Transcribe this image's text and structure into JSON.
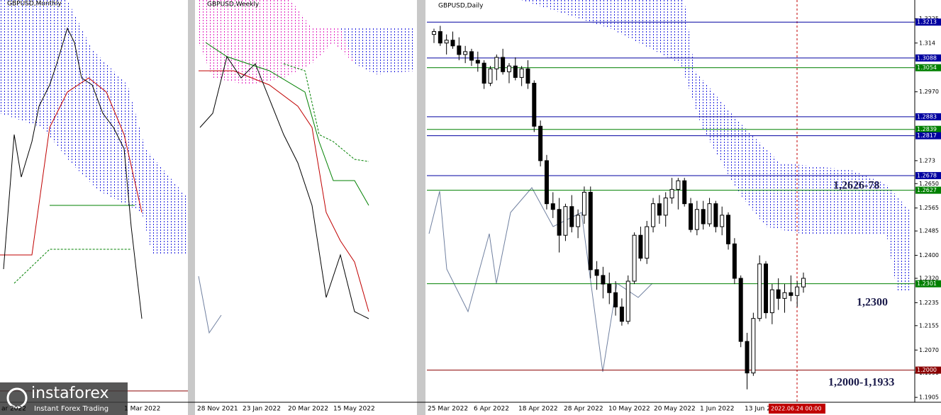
{
  "chart_data": {
    "type": "candlestick",
    "panels": [
      {
        "title": "GBPUSD,Monthly",
        "x_labels": [
          "ar 2022",
          "1 Mar 2022"
        ]
      },
      {
        "title": "GBPUSD,Weekly",
        "x_labels": [
          "28 Nov 2021",
          "23 Jan 2022",
          "20 Mar 2022",
          "15 May 2022"
        ]
      },
      {
        "title": "GBPUSD,Daily",
        "x_labels": [
          "25 Mar 2022",
          "6 Apr 2022",
          "18 Apr 2022",
          "28 Apr 2022",
          "10 May 2022",
          "20 May 2022",
          "1 Jun 2022",
          "13 Jun 2"
        ],
        "cursor_label": "2022.06.24 00:00"
      }
    ],
    "ylim": [
      1.1888,
      1.329
    ],
    "yticks": [
      1.3225,
      1.314,
      {
        "value": 1.297,
        "label": "1.2970"
      },
      1.273,
      {
        "value": 1.265,
        "label": "1.2650"
      },
      1.2565,
      1.2485,
      {
        "value": 1.24,
        "label": "1.2400"
      },
      {
        "value": 1.232,
        "label": "1.2320"
      },
      1.2235,
      1.2155,
      {
        "value": 1.207,
        "label": "1.2070"
      },
      {
        "value": 1.199,
        "label": "1.1990"
      },
      1.1905
    ],
    "levels": [
      {
        "value": 1.3213,
        "color": "#0000a0"
      },
      {
        "value": 1.3088,
        "color": "#0000a0"
      },
      {
        "value": 1.3054,
        "color": "#008000"
      },
      {
        "value": 1.2883,
        "color": "#0000a0"
      },
      {
        "value": 1.2839,
        "color": "#008000"
      },
      {
        "value": 1.2817,
        "color": "#0000a0"
      },
      {
        "value": 1.2678,
        "color": "#0000a0"
      },
      {
        "value": 1.2627,
        "color": "#008000"
      },
      {
        "value": 1.2301,
        "color": "#008000"
      },
      {
        "value": 1.2,
        "label": "1.2000",
        "color": "#8b0000"
      }
    ],
    "annotations": [
      "1,2626-78",
      "1,2300",
      "1,2000-1,1933"
    ],
    "watermark": [
      "instaforex",
      "Instant Forex Trading"
    ],
    "candles": [
      [
        1.317,
        1.319,
        1.314,
        1.318
      ],
      [
        1.318,
        1.32,
        1.313,
        1.314
      ],
      [
        1.314,
        1.317,
        1.31,
        1.315
      ],
      [
        1.315,
        1.318,
        1.312,
        1.313
      ],
      [
        1.313,
        1.316,
        1.308,
        1.31
      ],
      [
        1.31,
        1.313,
        1.307,
        1.311
      ],
      [
        1.311,
        1.312,
        1.306,
        1.308
      ],
      [
        1.308,
        1.311,
        1.304,
        1.307
      ],
      [
        1.307,
        1.308,
        1.298,
        1.3
      ],
      [
        1.3,
        1.306,
        1.299,
        1.305
      ],
      [
        1.305,
        1.31,
        1.301,
        1.309
      ],
      [
        1.309,
        1.312,
        1.303,
        1.304
      ],
      [
        1.304,
        1.307,
        1.3,
        1.306
      ],
      [
        1.306,
        1.309,
        1.301,
        1.302
      ],
      [
        1.302,
        1.306,
        1.299,
        1.305
      ],
      [
        1.305,
        1.308,
        1.298,
        1.3
      ],
      [
        1.3,
        1.301,
        1.283,
        1.285
      ],
      [
        1.285,
        1.287,
        1.271,
        1.273
      ],
      [
        1.273,
        1.275,
        1.256,
        1.258
      ],
      [
        1.258,
        1.262,
        1.253,
        1.256
      ],
      [
        1.256,
        1.26,
        1.241,
        1.247
      ],
      [
        1.247,
        1.258,
        1.245,
        1.257
      ],
      [
        1.257,
        1.261,
        1.248,
        1.25
      ],
      [
        1.25,
        1.256,
        1.246,
        1.254
      ],
      [
        1.254,
        1.264,
        1.251,
        1.262
      ],
      [
        1.262,
        1.264,
        1.232,
        1.235
      ],
      [
        1.235,
        1.238,
        1.228,
        1.233
      ],
      [
        1.233,
        1.236,
        1.225,
        1.23
      ],
      [
        1.23,
        1.234,
        1.223,
        1.227
      ],
      [
        1.227,
        1.231,
        1.219,
        1.222
      ],
      [
        1.222,
        1.225,
        1.2155,
        1.217
      ],
      [
        1.217,
        1.233,
        1.216,
        1.231
      ],
      [
        1.231,
        1.248,
        1.23,
        1.247
      ],
      [
        1.247,
        1.25,
        1.238,
        1.239
      ],
      [
        1.239,
        1.252,
        1.237,
        1.25
      ],
      [
        1.25,
        1.26,
        1.248,
        1.258
      ],
      [
        1.258,
        1.261,
        1.251,
        1.254
      ],
      [
        1.254,
        1.262,
        1.25,
        1.26
      ],
      [
        1.26,
        1.267,
        1.258,
        1.263
      ],
      [
        1.263,
        1.267,
        1.256,
        1.266
      ],
      [
        1.266,
        1.267,
        1.257,
        1.258
      ],
      [
        1.258,
        1.26,
        1.248,
        1.249
      ],
      [
        1.249,
        1.259,
        1.247,
        1.256
      ],
      [
        1.256,
        1.259,
        1.249,
        1.251
      ],
      [
        1.251,
        1.26,
        1.25,
        1.258
      ],
      [
        1.258,
        1.259,
        1.248,
        1.25
      ],
      [
        1.25,
        1.257,
        1.247,
        1.254
      ],
      [
        1.254,
        1.255,
        1.242,
        1.244
      ],
      [
        1.244,
        1.246,
        1.23,
        1.232
      ],
      [
        1.232,
        1.233,
        1.208,
        1.21
      ],
      [
        1.21,
        1.213,
        1.1933,
        1.199
      ],
      [
        1.199,
        1.22,
        1.198,
        1.218
      ],
      [
        1.218,
        1.24,
        1.217,
        1.237
      ],
      [
        1.237,
        1.238,
        1.218,
        1.22
      ],
      [
        1.22,
        1.23,
        1.216,
        1.228
      ],
      [
        1.228,
        1.232,
        1.221,
        1.225
      ],
      [
        1.225,
        1.23,
        1.22,
        1.227
      ],
      [
        1.227,
        1.233,
        1.224,
        1.226
      ],
      [
        1.226,
        1.231,
        1.222,
        1.229
      ],
      [
        1.229,
        1.234,
        1.227,
        1.232
      ]
    ]
  }
}
